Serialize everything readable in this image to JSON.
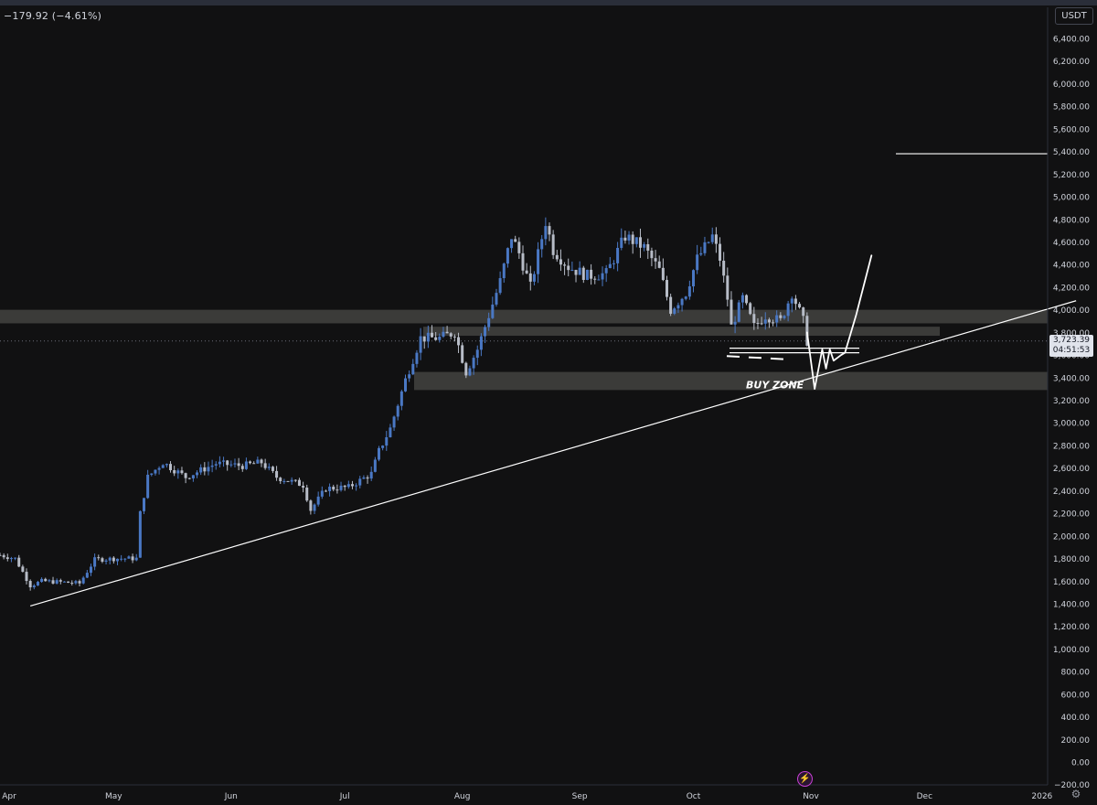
{
  "legend": {
    "change": "−179.92 (−4.61%)"
  },
  "currency": "USDT",
  "price_tag": {
    "price": "3,723.39",
    "countdown": "04:51:53"
  },
  "annotation": {
    "buy_zone": "BUY ZONE"
  },
  "icons": {
    "settings": "settings-gear-icon",
    "alert": "lightning-alert-icon"
  },
  "colors": {
    "background": "#111112",
    "bull_candle": "#4a78c4",
    "bear_candle": "#b7bcc7",
    "zone_fill": "#e8e6d8",
    "drawing": "#ffffff",
    "axis_text": "#d1d4dc"
  },
  "chart_data": {
    "type": "candlestick",
    "x_axis": {
      "tick_labels": [
        "Apr",
        "May",
        "Jun",
        "Jul",
        "Aug",
        "Sep",
        "Oct",
        "Nov",
        "Dec",
        "2026"
      ],
      "range": [
        "2025-04-01",
        "2026-01-10"
      ]
    },
    "y_axis": {
      "tick_labels": [
        "−200.00",
        "0.00",
        "200.00",
        "400.00",
        "600.00",
        "800.00",
        "1,000.00",
        "1,200.00",
        "1,400.00",
        "1,600.00",
        "1,800.00",
        "2,000.00",
        "2,200.00",
        "2,400.00",
        "2,600.00",
        "2,800.00",
        "3,000.00",
        "3,200.00",
        "3,400.00",
        "3,600.00",
        "3,800.00",
        "4,000.00",
        "4,200.00",
        "4,400.00",
        "4,600.00",
        "4,800.00",
        "5,000.00",
        "5,200.00",
        "5,400.00",
        "5,600.00",
        "5,800.00",
        "6,000.00",
        "6,200.00",
        "6,400.00"
      ],
      "range": [
        -200,
        6600
      ],
      "unit": "USDT"
    },
    "close_path": [
      [
        "2025-04-01",
        1830
      ],
      [
        "2025-04-05",
        1800
      ],
      [
        "2025-04-09",
        1560
      ],
      [
        "2025-04-12",
        1600
      ],
      [
        "2025-04-18",
        1590
      ],
      [
        "2025-04-22",
        1580
      ],
      [
        "2025-04-26",
        1790
      ],
      [
        "2025-05-02",
        1800
      ],
      [
        "2025-05-07",
        1800
      ],
      [
        "2025-05-08",
        2200
      ],
      [
        "2025-05-10",
        2520
      ],
      [
        "2025-05-14",
        2650
      ],
      [
        "2025-05-20",
        2520
      ],
      [
        "2025-05-28",
        2640
      ],
      [
        "2025-06-04",
        2620
      ],
      [
        "2025-06-09",
        2650
      ],
      [
        "2025-06-13",
        2520
      ],
      [
        "2025-06-20",
        2450
      ],
      [
        "2025-06-22",
        2230
      ],
      [
        "2025-06-26",
        2420
      ],
      [
        "2025-07-02",
        2430
      ],
      [
        "2025-07-08",
        2550
      ],
      [
        "2025-07-10",
        2750
      ],
      [
        "2025-07-13",
        2950
      ],
      [
        "2025-07-17",
        3380
      ],
      [
        "2025-07-21",
        3750
      ],
      [
        "2025-07-26",
        3750
      ],
      [
        "2025-07-30",
        3800
      ],
      [
        "2025-08-02",
        3450
      ],
      [
        "2025-08-05",
        3650
      ],
      [
        "2025-08-08",
        3950
      ],
      [
        "2025-08-11",
        4250
      ],
      [
        "2025-08-14",
        4650
      ],
      [
        "2025-08-16",
        4500
      ],
      [
        "2025-08-19",
        4200
      ],
      [
        "2025-08-23",
        4780
      ],
      [
        "2025-08-25",
        4530
      ],
      [
        "2025-08-29",
        4380
      ],
      [
        "2025-09-03",
        4300
      ],
      [
        "2025-09-08",
        4320
      ],
      [
        "2025-09-13",
        4650
      ],
      [
        "2025-09-18",
        4550
      ],
      [
        "2025-09-22",
        4350
      ],
      [
        "2025-09-25",
        4000
      ],
      [
        "2025-09-29",
        4150
      ],
      [
        "2025-10-02",
        4450
      ],
      [
        "2025-10-06",
        4650
      ],
      [
        "2025-10-08",
        4450
      ],
      [
        "2025-10-10",
        4100
      ],
      [
        "2025-10-11",
        3850
      ],
      [
        "2025-10-14",
        4100
      ],
      [
        "2025-10-17",
        3850
      ],
      [
        "2025-10-20",
        3950
      ],
      [
        "2025-10-24",
        3900
      ],
      [
        "2025-10-27",
        4150
      ],
      [
        "2025-10-30",
        3900
      ],
      [
        "2025-10-31",
        3723
      ]
    ],
    "horizontal_zones": [
      [
        3880,
        4000
      ],
      [
        3770,
        3850
      ],
      [
        3290,
        3450
      ]
    ],
    "trendline": {
      "start": [
        "2025-04-09",
        1380
      ],
      "end": [
        "2026-01-10",
        4080
      ]
    },
    "horizontal_lines": [
      5380,
      3660,
      3620
    ],
    "projection_path": [
      [
        "2025-10-31",
        3800
      ],
      [
        "2025-11-02",
        3300
      ],
      [
        "2025-11-04",
        3650
      ],
      [
        "2025-11-05",
        3480
      ],
      [
        "2025-11-06",
        3650
      ],
      [
        "2025-11-07",
        3550
      ],
      [
        "2025-11-09",
        3600
      ],
      [
        "2025-11-10",
        3620
      ],
      [
        "2025-11-13",
        3960
      ],
      [
        "2025-11-17",
        4480
      ]
    ],
    "current_price": 3723.39
  }
}
